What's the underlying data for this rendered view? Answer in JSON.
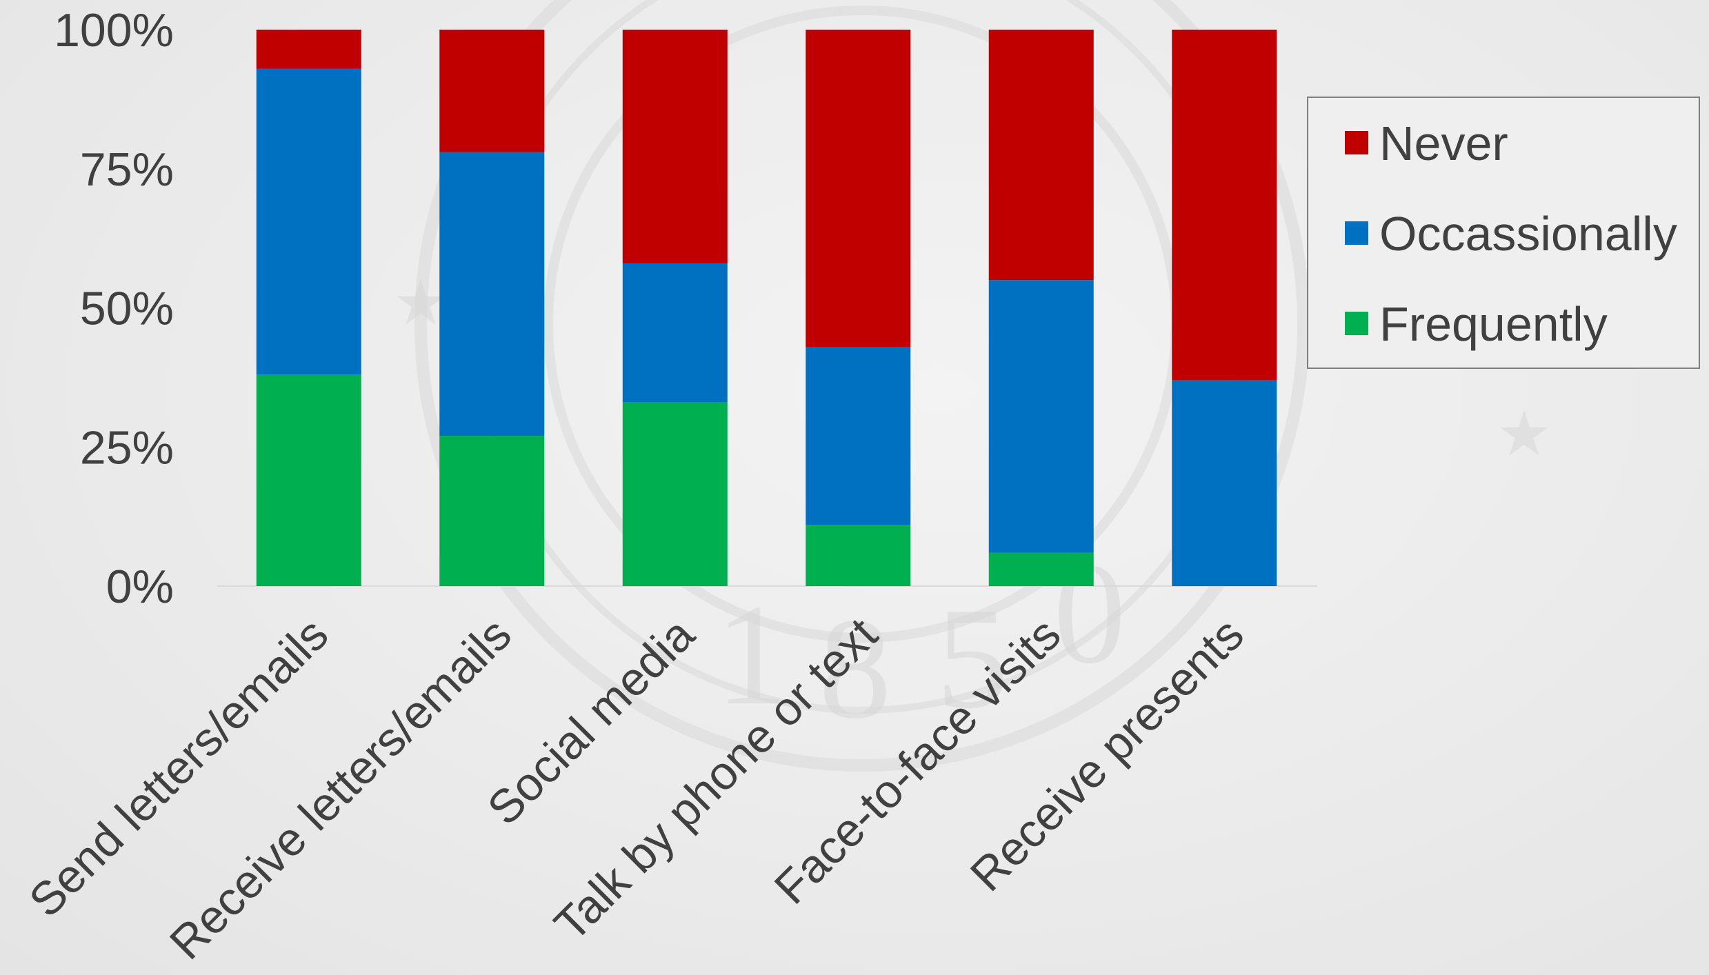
{
  "chart_data": {
    "type": "bar",
    "stacked": true,
    "percent_stacked": true,
    "categories": [
      "Send letters/emails",
      "Receive letters/emails",
      "Social media",
      "Talk by phone or text",
      "Face-to-face visits",
      "Receive presents"
    ],
    "series": [
      {
        "name": "Frequently",
        "color": "#00b050",
        "values": [
          38,
          27,
          33,
          11,
          6,
          0
        ]
      },
      {
        "name": "Occassionally",
        "color": "#0070c0",
        "values": [
          55,
          51,
          25,
          32,
          49,
          37
        ]
      },
      {
        "name": "Never",
        "color": "#c00000",
        "values": [
          7,
          22,
          42,
          57,
          45,
          63
        ]
      }
    ],
    "yticks": [
      "0%",
      "25%",
      "50%",
      "75%",
      "100%"
    ],
    "ylim": [
      0,
      100
    ],
    "legend": [
      "Never",
      "Occassionally",
      "Frequently"
    ],
    "legend_position": "right",
    "grid": false,
    "title": "",
    "xlabel": "",
    "ylabel": ""
  }
}
